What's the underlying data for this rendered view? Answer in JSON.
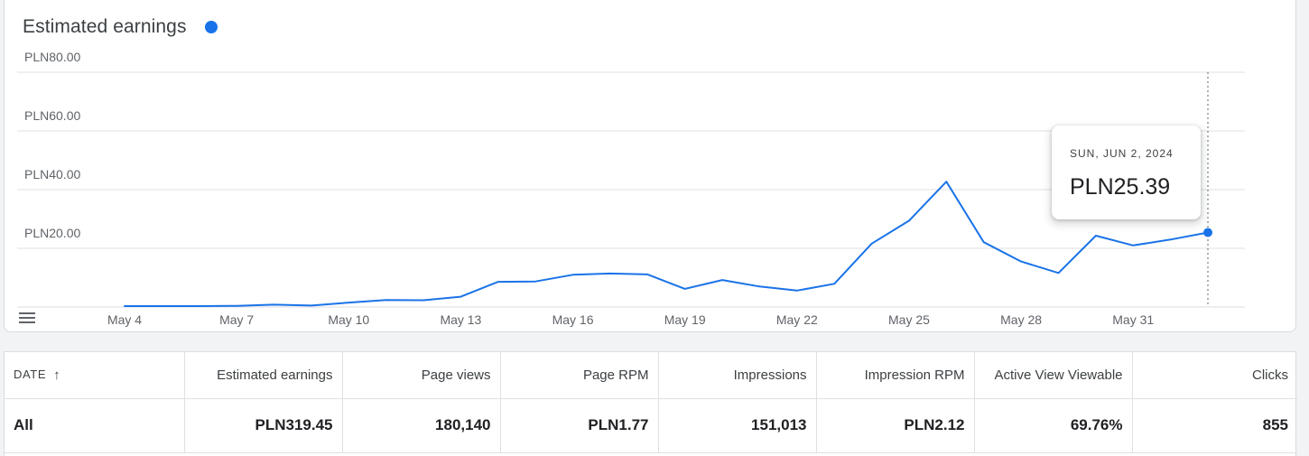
{
  "chart_card": {
    "title": "Estimated earnings",
    "legend_color": "#1a73e8"
  },
  "tooltip": {
    "date": "SUN, JUN 2, 2024",
    "value": "PLN25.39"
  },
  "chart_data": {
    "type": "line",
    "title": "Estimated earnings",
    "y_tick_labels": [
      "PLN20.00",
      "PLN40.00",
      "PLN60.00",
      "PLN80.00"
    ],
    "y_ticks": [
      20,
      40,
      60,
      80
    ],
    "ylim": [
      0,
      80
    ],
    "x_tick_labels": [
      "May 4",
      "May 7",
      "May 10",
      "May 13",
      "May 16",
      "May 19",
      "May 22",
      "May 25",
      "May 28",
      "May 31"
    ],
    "x_tick_indices": [
      0,
      3,
      6,
      9,
      12,
      15,
      18,
      21,
      24,
      27
    ],
    "grid": true,
    "series": [
      {
        "color": "#1a73e8",
        "x": [
          "May 4",
          "May 5",
          "May 6",
          "May 7",
          "May 8",
          "May 9",
          "May 10",
          "May 11",
          "May 12",
          "May 13",
          "May 14",
          "May 15",
          "May 16",
          "May 17",
          "May 18",
          "May 19",
          "May 20",
          "May 21",
          "May 22",
          "May 23",
          "May 24",
          "May 25",
          "May 26",
          "May 27",
          "May 28",
          "May 29",
          "May 30",
          "May 31",
          "Jun 1",
          "Jun 2"
        ],
        "values": [
          0.3,
          0.3,
          0.3,
          0.4,
          0.8,
          0.5,
          1.5,
          2.4,
          2.3,
          3.5,
          8.6,
          8.7,
          11.0,
          11.4,
          11.1,
          6.2,
          9.2,
          7.0,
          5.6,
          7.9,
          21.6,
          29.4,
          42.7,
          22.1,
          15.5,
          11.6,
          24.3,
          21.0,
          23.0,
          25.39
        ]
      }
    ]
  },
  "table": {
    "columns": [
      "DATE",
      "Estimated earnings",
      "Page views",
      "Page RPM",
      "Impressions",
      "Impression RPM",
      "Active View Viewable",
      "Clicks"
    ],
    "sort_icon": "arrow-up-icon",
    "row": [
      "All",
      "PLN319.45",
      "180,140",
      "PLN1.77",
      "151,013",
      "PLN2.12",
      "69.76%",
      "855"
    ]
  }
}
